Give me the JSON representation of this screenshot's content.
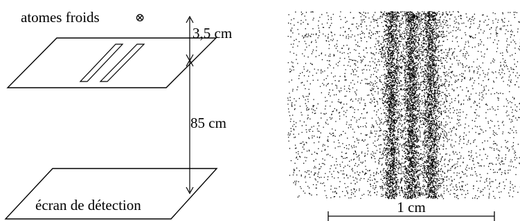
{
  "figure": {
    "source_label": "atomes froids",
    "source_symbol": "⊗",
    "distance_source_slits": "3,5 cm",
    "distance_slits_screen": "85 cm",
    "screen_label": "écran de détection",
    "scale_label": "1 cm"
  },
  "pattern": {
    "fringe_count": 3
  }
}
